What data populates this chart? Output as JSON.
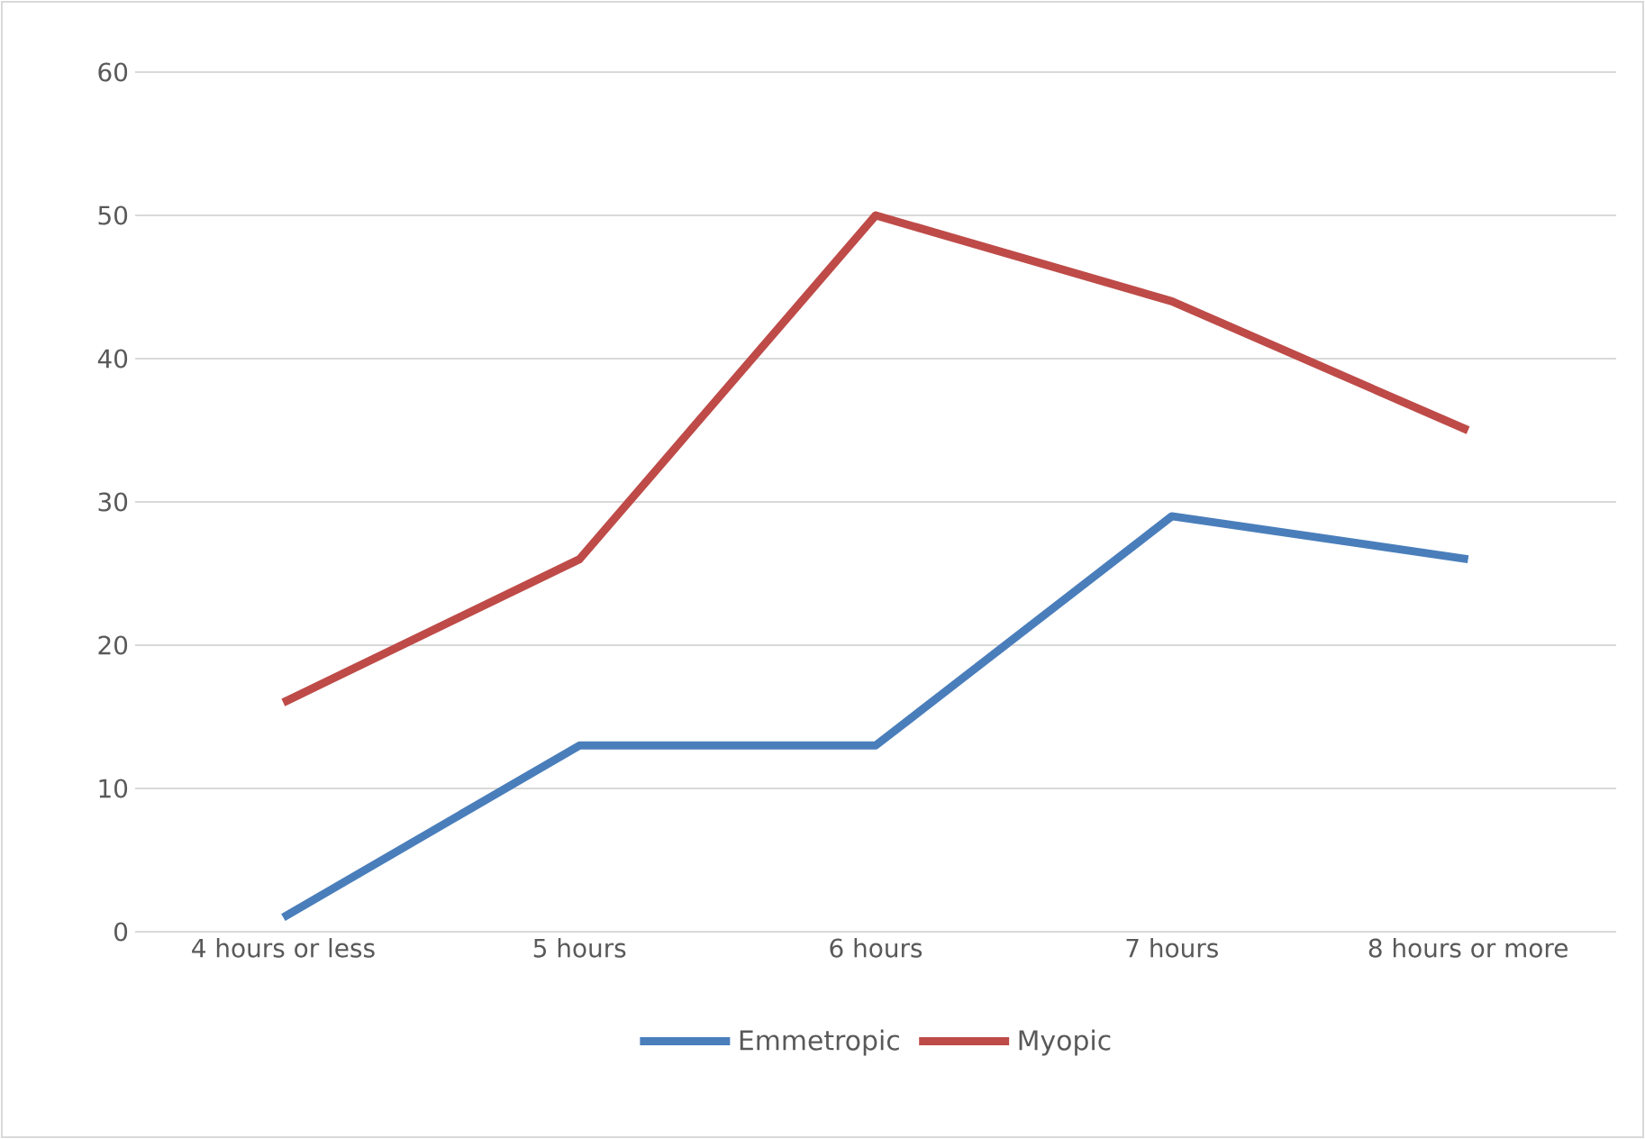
{
  "chart_data": {
    "type": "line",
    "categories": [
      "4 hours or less",
      "5 hours",
      "6 hours",
      "7 hours",
      "8 hours or more"
    ],
    "series": [
      {
        "name": "Emmetropic",
        "color": "#4a7ebb",
        "values": [
          1,
          13,
          13,
          29,
          26
        ]
      },
      {
        "name": "Myopic",
        "color": "#be4b48",
        "values": [
          16,
          26,
          50,
          44,
          35
        ]
      }
    ],
    "ylim": [
      0,
      60
    ],
    "yticks": [
      0,
      10,
      20,
      30,
      40,
      50,
      60
    ],
    "grid": "y",
    "legend": "bottom",
    "marker": "none",
    "line_style": "solid"
  }
}
